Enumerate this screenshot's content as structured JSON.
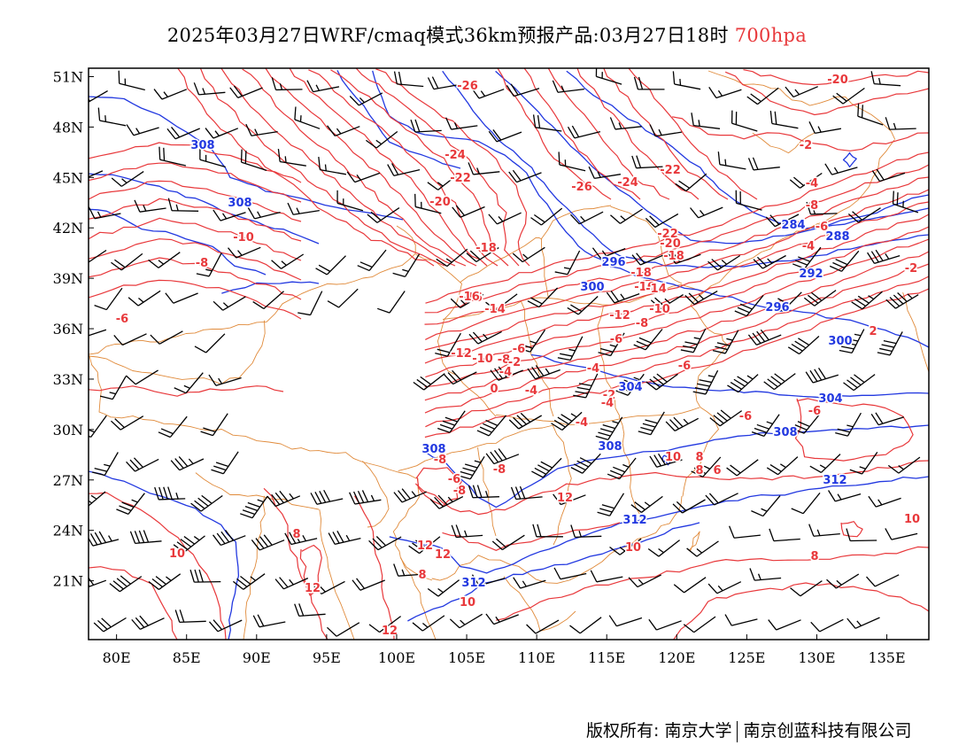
{
  "title": {
    "main": "2025年03月27日WRF/cmaq模式36km预报产品:03月27日18时",
    "level": "700hpa"
  },
  "axes": {
    "x_ticks": [
      "80E",
      "85E",
      "90E",
      "95E",
      "100E",
      "105E",
      "110E",
      "115E",
      "120E",
      "125E",
      "130E",
      "135E"
    ],
    "y_ticks": [
      "51N",
      "48N",
      "45N",
      "42N",
      "39N",
      "36N",
      "33N",
      "30N",
      "27N",
      "24N",
      "21N"
    ],
    "lon_range": [
      78,
      138
    ],
    "lat_range": [
      17.5,
      51.5
    ]
  },
  "colors": {
    "temperature": "#e8383b",
    "height": "#2238e0",
    "border": "#e08a3a",
    "wind": "#000000"
  },
  "temperature_labels": [
    "-26",
    "-20",
    "-24",
    "-22",
    "-20",
    "-18",
    "-16",
    "-26",
    "-24",
    "-22",
    "-22",
    "-20",
    "-18",
    "-18",
    "-16",
    "-14",
    "-10",
    "-8",
    "-6",
    "-16",
    "-14",
    "-12",
    "-10",
    "-8",
    "-6",
    "-4",
    "-12",
    "-10",
    "-8",
    "-6",
    "-4",
    "-2",
    "0",
    "-4",
    "-2",
    "-4",
    "-6",
    "-2",
    "-4",
    "-8",
    "-6",
    "-4",
    "-2",
    "2",
    "-4",
    "-6",
    "-6",
    "-8",
    "-6",
    "-8",
    "-8",
    "12",
    "10",
    "8",
    "12",
    "8",
    "10",
    "12",
    "10",
    "12",
    "12",
    "10",
    "8",
    "8",
    "6",
    "8",
    "10"
  ],
  "height_labels": [
    "308",
    "308",
    "296",
    "300",
    "296",
    "292",
    "300",
    "284",
    "288",
    "304",
    "304",
    "308",
    "308",
    "308",
    "312",
    "312",
    "312"
  ],
  "footer": {
    "left": "版权所有: 南京大学",
    "right": "南京创蓝科技有限公司"
  }
}
